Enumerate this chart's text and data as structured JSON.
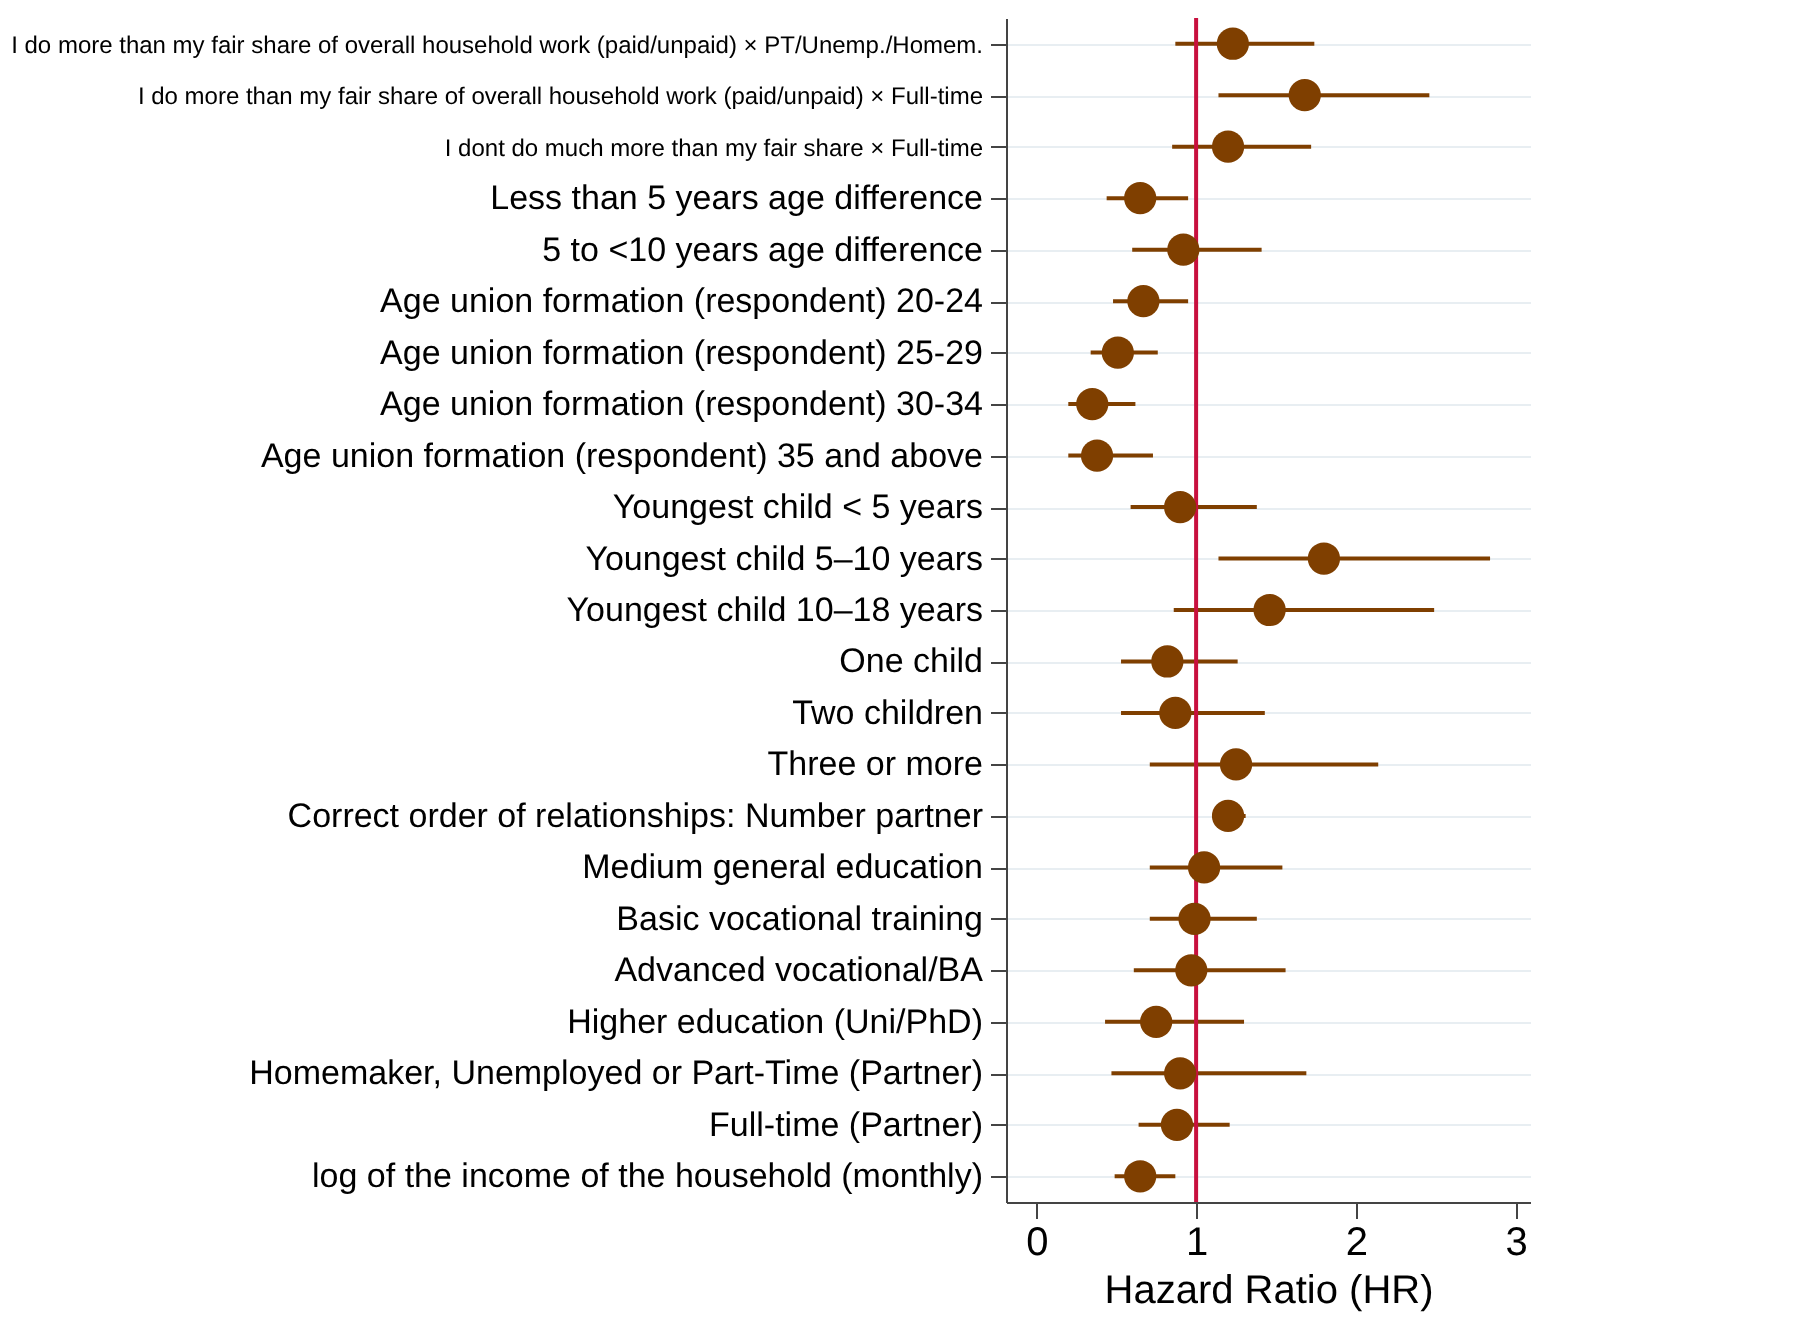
{
  "chart_data": {
    "type": "scatter",
    "orientation": "horizontal",
    "xlabel": "Hazard Ratio (HR)",
    "categories": [
      "I do more than my fair share of overall household work (paid/unpaid) × PT/Unemp./Homem.",
      "I do more than my fair share of overall household work (paid/unpaid) × Full-time",
      "I dont do much more than my fair share × Full-time",
      "Less than 5 years age difference",
      "5 to <10 years age difference",
      "Age union formation (respondent) 20-24",
      "Age union formation (respondent) 25-29",
      "Age union formation (respondent) 30-34",
      "Age union formation (respondent) 35 and above",
      "Youngest child < 5 years",
      "Youngest child 5–10 years",
      "Youngest child 10–18 years",
      "One child",
      "Two children",
      "Three or more",
      "Correct order of relationships: Number partner",
      "Medium general education",
      "Basic vocational training",
      "Advanced vocational/BA",
      "Higher education (Uni/PhD)",
      "Homemaker, Unemployed or Part-Time (Partner)",
      "Full-time (Partner)",
      "log of the income of the household (monthly)"
    ],
    "values": [
      1.23,
      1.68,
      1.2,
      0.65,
      0.92,
      0.67,
      0.51,
      0.35,
      0.38,
      0.9,
      1.8,
      1.46,
      0.82,
      0.87,
      1.25,
      1.2,
      1.05,
      0.99,
      0.97,
      0.75,
      0.9,
      0.88,
      0.65
    ],
    "errors": [
      [
        0.87,
        1.74
      ],
      [
        1.14,
        2.46
      ],
      [
        0.85,
        1.72
      ],
      [
        0.44,
        0.95
      ],
      [
        0.6,
        1.41
      ],
      [
        0.48,
        0.95
      ],
      [
        0.34,
        0.76
      ],
      [
        0.2,
        0.62
      ],
      [
        0.2,
        0.73
      ],
      [
        0.59,
        1.38
      ],
      [
        1.14,
        2.84
      ],
      [
        0.86,
        2.49
      ],
      [
        0.53,
        1.26
      ],
      [
        0.53,
        1.43
      ],
      [
        0.71,
        2.14
      ],
      [
        1.1,
        1.31
      ],
      [
        0.71,
        1.54
      ],
      [
        0.71,
        1.38
      ],
      [
        0.61,
        1.56
      ],
      [
        0.43,
        1.3
      ],
      [
        0.47,
        1.69
      ],
      [
        0.64,
        1.21
      ],
      [
        0.49,
        0.87
      ]
    ],
    "color": "#7f3f00",
    "xlim": [
      -0.19,
      3.09
    ],
    "xticks": [
      0,
      1,
      2,
      3
    ],
    "ref_lines": [
      {
        "axis": "x",
        "value": 1,
        "color": "#c8103e"
      }
    ],
    "grid": "y",
    "marker": "circle"
  }
}
